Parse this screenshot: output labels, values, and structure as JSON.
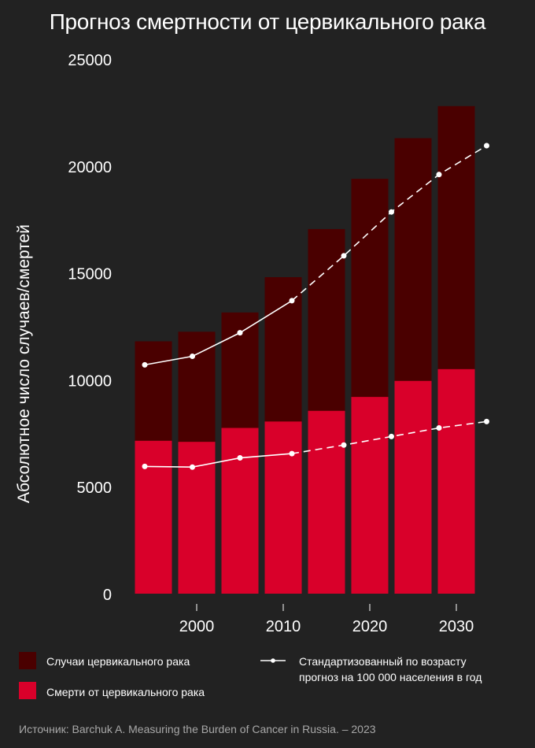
{
  "chart_data": {
    "type": "bar",
    "title": "Прогноз смертности от цервикального рака",
    "ylabel": "Абсолютное число случаев/смертей",
    "ylim": [
      0,
      25000
    ],
    "yticks": [
      0,
      5000,
      10000,
      15000,
      20000,
      25000
    ],
    "xlim": [
      1993,
      2034
    ],
    "xticks": [
      2000,
      2010,
      2020,
      2030
    ],
    "bar_x": [
      1995,
      2000,
      2005,
      2010,
      2015,
      2020,
      2025,
      2030
    ],
    "series": [
      {
        "name": "Случаи цервикального рака",
        "color": "#4a0000",
        "values": [
          11800,
          12250,
          13150,
          14800,
          17050,
          19400,
          21300,
          22800
        ]
      },
      {
        "name": "Смерти от цервикального рака",
        "color": "#d9002a",
        "values": [
          7150,
          7100,
          7750,
          8050,
          8550,
          9200,
          9950,
          10500
        ]
      }
    ],
    "lines": [
      {
        "name": "Стандартизованный по возрасту прогноз на 100 000 населения в год",
        "color": "#ffffff",
        "x": [
          1994,
          1999.5,
          2005,
          2011,
          2017,
          2022.5,
          2028,
          2033.5
        ],
        "y": [
          10700,
          11100,
          12200,
          13700,
          15800,
          17850,
          19600,
          20950
        ],
        "solid_until": 2011
      },
      {
        "name": "",
        "color": "#ffffff",
        "x": [
          1994,
          1999.5,
          2005,
          2011,
          2017,
          2022.5,
          2028,
          2033.5
        ],
        "y": [
          5950,
          5920,
          6350,
          6550,
          6950,
          7350,
          7750,
          8050
        ],
        "solid_until": 2011
      }
    ],
    "legend": {
      "position": "bottom",
      "line_label": [
        "Стандартизованный по возрасту",
        "прогноз на 100 000 населения в год"
      ]
    },
    "source": "Источник: Barchuk A. Measuring the Burden of Cancer in Russia. – 2023"
  }
}
